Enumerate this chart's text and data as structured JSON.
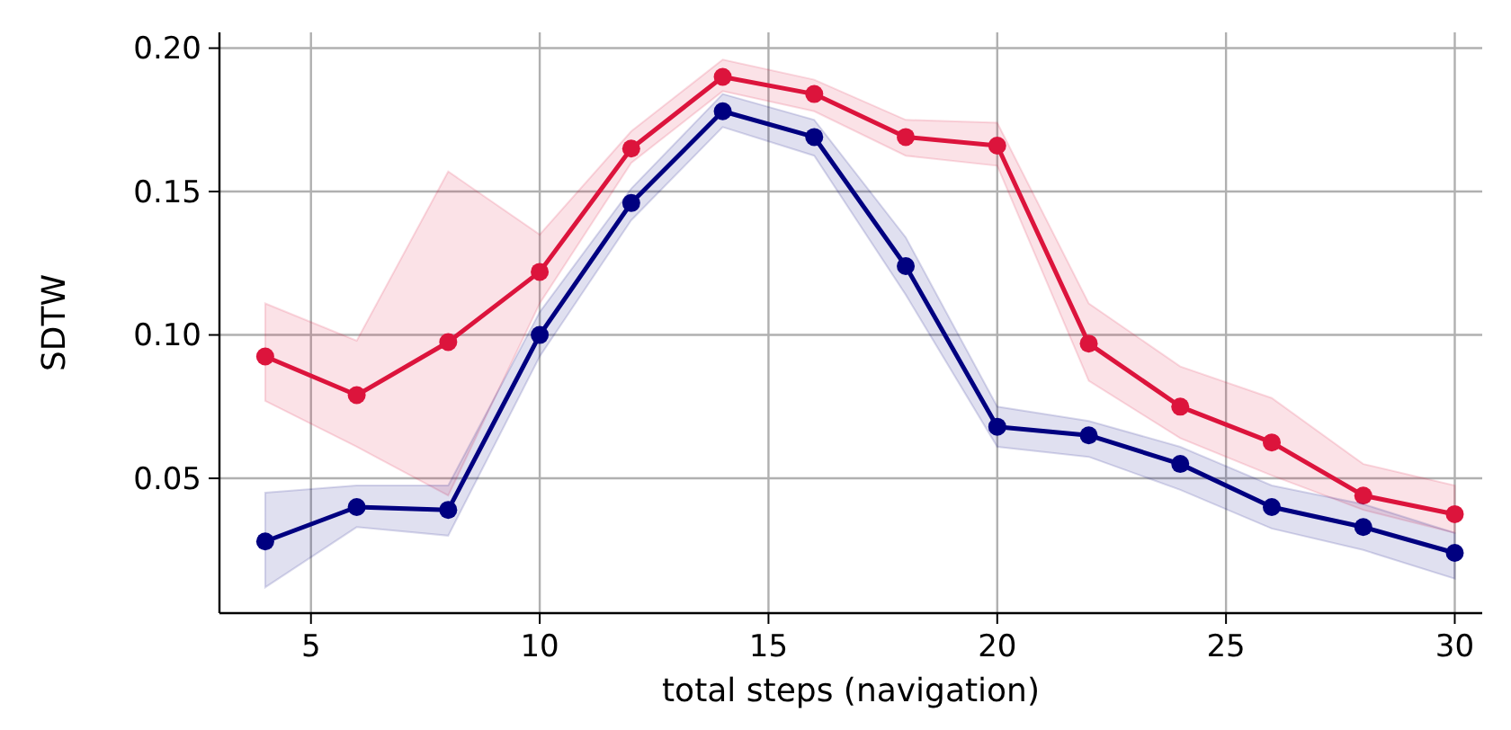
{
  "chart_data": {
    "type": "line",
    "xlabel": "total steps (navigation)",
    "ylabel": "SDTW",
    "x": [
      4,
      6,
      8,
      10,
      12,
      14,
      16,
      18,
      20,
      22,
      24,
      26,
      28,
      30
    ],
    "series": [
      {
        "color": "#dc143c",
        "values": [
          0.0925,
          0.079,
          0.0975,
          0.122,
          0.165,
          0.19,
          0.184,
          0.169,
          0.166,
          0.097,
          0.075,
          0.0625,
          0.044,
          0.0375
        ],
        "lower": [
          0.077,
          0.061,
          0.044,
          0.111,
          0.16,
          0.185,
          0.178,
          0.1625,
          0.159,
          0.084,
          0.064,
          0.051,
          0.039,
          0.031
        ],
        "upper": [
          0.111,
          0.098,
          0.157,
          0.135,
          0.171,
          0.196,
          0.189,
          0.175,
          0.174,
          0.111,
          0.089,
          0.078,
          0.055,
          0.0475
        ]
      },
      {
        "color": "#000080",
        "values": [
          0.028,
          0.04,
          0.039,
          0.1,
          0.146,
          0.178,
          0.169,
          0.124,
          0.068,
          0.065,
          0.055,
          0.04,
          0.033,
          0.024
        ],
        "lower": [
          0.012,
          0.033,
          0.03,
          0.0925,
          0.14,
          0.1725,
          0.1625,
          0.114,
          0.061,
          0.0575,
          0.046,
          0.0325,
          0.025,
          0.015
        ],
        "upper": [
          0.045,
          0.0475,
          0.0475,
          0.108,
          0.151,
          0.184,
          0.175,
          0.134,
          0.075,
          0.07,
          0.061,
          0.0475,
          0.041,
          0.031
        ]
      }
    ],
    "xlim": [
      3,
      30.6
    ],
    "ylim": [
      0.003,
      0.2055
    ],
    "xticks": [
      5,
      10,
      15,
      20,
      25,
      30
    ],
    "yticks": [
      {
        "value": 0.05,
        "label": "0.05"
      },
      {
        "value": 0.1,
        "label": "0.10"
      },
      {
        "value": 0.15,
        "label": "0.15"
      },
      {
        "value": 0.2,
        "label": "0.20"
      }
    ],
    "grid": true,
    "marker": "circle",
    "line_style": "solid"
  }
}
